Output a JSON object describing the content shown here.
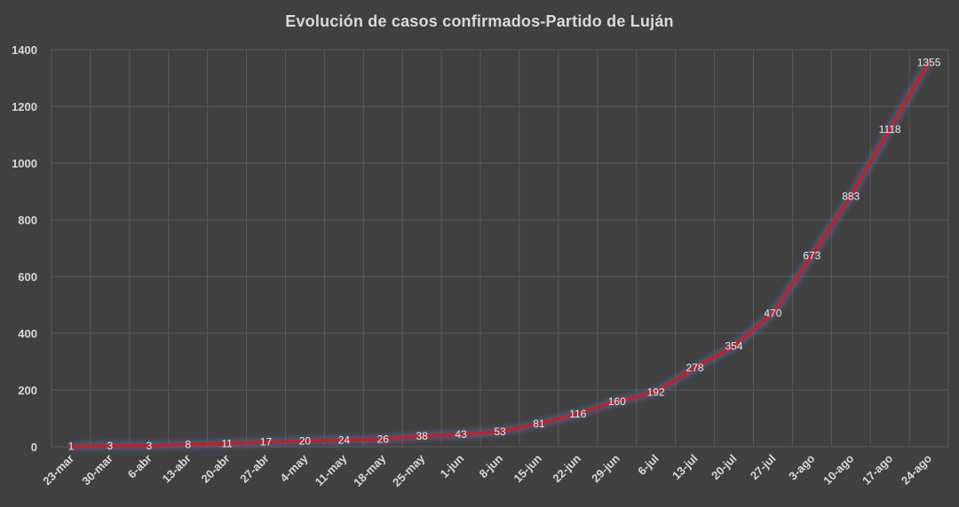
{
  "chart_data": {
    "type": "line",
    "title": "Evolución  de casos confirmados-Partido  de Luján",
    "categories": [
      "23-mar",
      "30-mar",
      "6-abr",
      "13-abr",
      "20-abr",
      "27-abr",
      "4-may",
      "11-may",
      "18-may",
      "25-may",
      "1-jun",
      "8-jun",
      "15-jun",
      "22-jun",
      "29-jun",
      "6-jul",
      "13-jul",
      "20-jul",
      "27-jul",
      "3-ago",
      "10-ago",
      "17-ago",
      "24-ago"
    ],
    "series": [
      {
        "values": [
          1,
          3,
          3,
          8,
          11,
          17,
          20,
          24,
          26,
          38,
          43,
          53,
          81,
          116,
          160,
          192,
          278,
          354,
          470,
          673,
          883,
          1118,
          1355
        ],
        "color": "#c0202a"
      }
    ],
    "ylim": [
      0,
      1400
    ],
    "yticks": [
      0,
      200,
      400,
      600,
      800,
      1000,
      1200,
      1400
    ],
    "grid": true,
    "legend": "none",
    "colors": {
      "background": "#404040",
      "grid": "#595959",
      "text": "#d9d9d9"
    }
  }
}
